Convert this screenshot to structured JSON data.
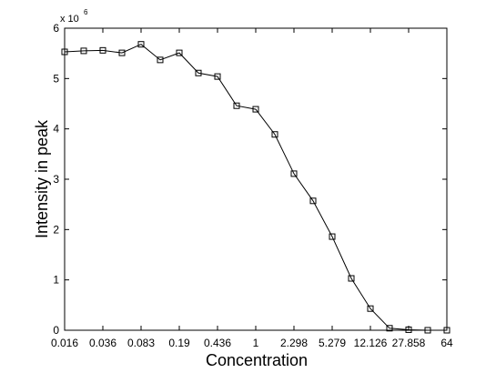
{
  "chart_data": {
    "type": "line",
    "x_label": "Concentration",
    "y_label": "Intensity in peak",
    "y_scale_label": "x 10",
    "y_scale_exponent": "6",
    "categories": [
      "0.016",
      null,
      "0.036",
      null,
      "0.083",
      null,
      "0.19",
      null,
      "0.436",
      null,
      "1",
      null,
      "2.298",
      null,
      "5.279",
      null,
      "12.126",
      null,
      "27.858",
      null,
      "64"
    ],
    "values": [
      5.53,
      5.55,
      5.56,
      5.51,
      5.68,
      5.37,
      5.51,
      5.11,
      5.04,
      4.46,
      4.39,
      3.89,
      3.11,
      2.57,
      1.86,
      1.03,
      0.43,
      0.04,
      0.01,
      0,
      0
    ],
    "color": "#000000",
    "marker": "square",
    "ylim": [
      0,
      6
    ],
    "yticks": [
      0,
      1,
      2,
      3,
      4,
      5,
      6
    ]
  }
}
